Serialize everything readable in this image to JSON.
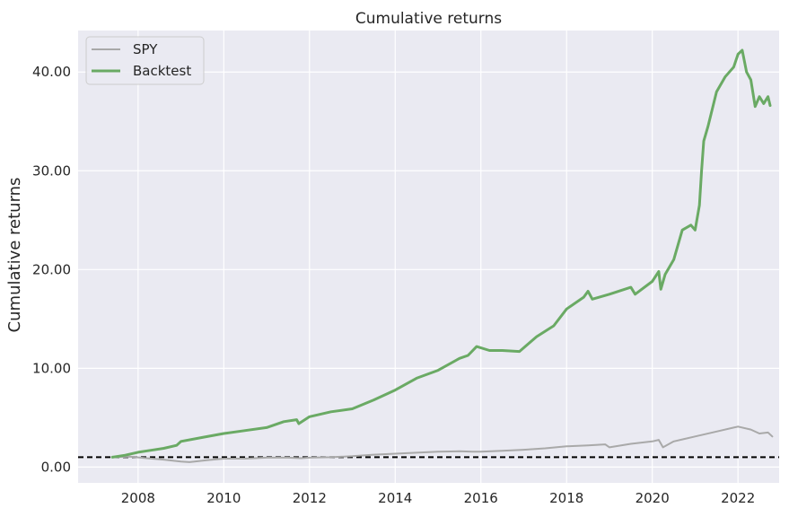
{
  "chart_data": {
    "type": "line",
    "title": "Cumulative returns",
    "xlabel": "",
    "ylabel": "Cumulative returns",
    "xlim": [
      2006.6,
      2022.96
    ],
    "ylim": [
      -1.6,
      44.2
    ],
    "x_ticks": [
      2008,
      2010,
      2012,
      2014,
      2016,
      2018,
      2020,
      2022
    ],
    "y_ticks": [
      0,
      10,
      20,
      30,
      40
    ],
    "x_tick_labels": [
      "2008",
      "2010",
      "2012",
      "2014",
      "2016",
      "2018",
      "2020",
      "2022"
    ],
    "y_tick_labels": [
      "0.00",
      "10.00",
      "20.00",
      "30.00",
      "40.00"
    ],
    "grid": true,
    "legend_position": "top-left",
    "reference_line": {
      "y": 1.0,
      "style": "dashed",
      "color": "#000000"
    },
    "series": [
      {
        "name": "SPY",
        "color": "#a9a9a9",
        "x": [
          2007.4,
          2007.8,
          2008.2,
          2008.6,
          2009.0,
          2009.2,
          2009.6,
          2010.0,
          2010.5,
          2011.0,
          2011.5,
          2011.8,
          2012.0,
          2012.5,
          2013.0,
          2013.5,
          2014.0,
          2014.5,
          2015.0,
          2015.5,
          2015.8,
          2016.0,
          2016.5,
          2017.0,
          2017.5,
          2018.0,
          2018.5,
          2018.9,
          2019.0,
          2019.5,
          2020.0,
          2020.15,
          2020.25,
          2020.5,
          2021.0,
          2021.5,
          2021.9,
          2022.0,
          2022.3,
          2022.5,
          2022.7,
          2022.8
        ],
        "y": [
          1.0,
          1.05,
          0.9,
          0.75,
          0.55,
          0.5,
          0.7,
          0.85,
          0.85,
          0.95,
          0.95,
          0.9,
          0.95,
          1.0,
          1.1,
          1.25,
          1.35,
          1.45,
          1.55,
          1.6,
          1.55,
          1.55,
          1.65,
          1.75,
          1.9,
          2.1,
          2.2,
          2.3,
          2.0,
          2.35,
          2.6,
          2.75,
          2.0,
          2.6,
          3.1,
          3.6,
          4.0,
          4.1,
          3.8,
          3.4,
          3.5,
          3.1
        ]
      },
      {
        "name": "Backtest",
        "color": "#6aaa64",
        "x": [
          2007.4,
          2007.7,
          2008.0,
          2008.3,
          2008.6,
          2008.9,
          2009.0,
          2009.5,
          2010.0,
          2010.5,
          2011.0,
          2011.4,
          2011.7,
          2011.75,
          2012.0,
          2012.5,
          2013.0,
          2013.5,
          2014.0,
          2014.5,
          2015.0,
          2015.5,
          2015.7,
          2015.9,
          2016.2,
          2016.5,
          2016.9,
          2017.3,
          2017.7,
          2018.0,
          2018.4,
          2018.5,
          2018.6,
          2019.0,
          2019.5,
          2019.6,
          2020.0,
          2020.15,
          2020.2,
          2020.3,
          2020.5,
          2020.7,
          2020.9,
          2021.0,
          2021.1,
          2021.15,
          2021.2,
          2021.3,
          2021.5,
          2021.7,
          2021.9,
          2022.0,
          2022.1,
          2022.2,
          2022.3,
          2022.4,
          2022.5,
          2022.6,
          2022.7,
          2022.75
        ],
        "y": [
          1.0,
          1.2,
          1.5,
          1.7,
          1.9,
          2.2,
          2.6,
          3.0,
          3.4,
          3.7,
          4.0,
          4.6,
          4.8,
          4.4,
          5.1,
          5.6,
          5.9,
          6.8,
          7.8,
          9.0,
          9.8,
          11.0,
          11.3,
          12.2,
          11.8,
          11.8,
          11.7,
          13.2,
          14.3,
          16.0,
          17.2,
          17.8,
          17.0,
          17.5,
          18.2,
          17.5,
          18.8,
          19.8,
          18.0,
          19.5,
          21.0,
          24.0,
          24.5,
          24.0,
          26.5,
          30.0,
          33.0,
          34.5,
          38.0,
          39.5,
          40.5,
          41.8,
          42.2,
          40.0,
          39.2,
          36.5,
          37.5,
          36.8,
          37.5,
          36.6
        ]
      }
    ]
  }
}
